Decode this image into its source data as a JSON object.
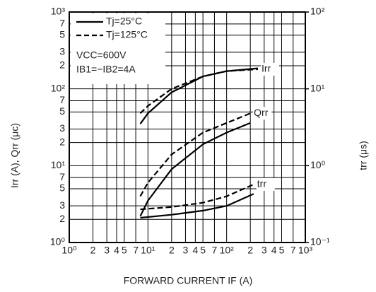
{
  "chart_data": {
    "type": "line",
    "xlabel": "FORWARD CURRENT   IF (A)",
    "ylabel": "Irr (A), Qrr (μc)",
    "y2label": "trr (μs)",
    "xscale": "log",
    "yscale": "log",
    "y2scale": "log",
    "grid": true,
    "xlim": [
      1,
      1000
    ],
    "xticks": [
      {
        "value": 1,
        "label": "10⁰"
      },
      2,
      3,
      4,
      5,
      7,
      {
        "value": 10,
        "label": "10¹"
      },
      {
        "value": 20,
        "label": "2"
      },
      {
        "value": 30,
        "label": "3"
      },
      {
        "value": 40,
        "label": "4"
      },
      {
        "value": 50,
        "label": "5"
      },
      {
        "value": 70,
        "label": "7"
      },
      {
        "value": 100,
        "label": "10²"
      },
      {
        "value": 200,
        "label": "2"
      },
      {
        "value": 300,
        "label": "3"
      },
      {
        "value": 400,
        "label": "4"
      },
      {
        "value": 500,
        "label": "5"
      },
      {
        "value": 700,
        "label": "7"
      },
      {
        "value": 1000,
        "label": "10³"
      }
    ],
    "ylim": [
      1,
      1000
    ],
    "yticks": [
      {
        "value": 1,
        "label": "10⁰"
      },
      2,
      3,
      5,
      7,
      {
        "value": 10,
        "label": "10¹"
      },
      {
        "value": 20,
        "label": "2"
      },
      {
        "value": 30,
        "label": "3"
      },
      {
        "value": 50,
        "label": "5"
      },
      {
        "value": 70,
        "label": "7"
      },
      {
        "value": 100,
        "label": "10²"
      },
      {
        "value": 200,
        "label": "2"
      },
      {
        "value": 300,
        "label": "3"
      },
      {
        "value": 500,
        "label": "5"
      },
      {
        "value": 700,
        "label": "7"
      },
      {
        "value": 1000,
        "label": "10³"
      }
    ],
    "y2lim": [
      0.1,
      100
    ],
    "y2ticks": [
      {
        "value": 0.1,
        "label": "10⁻¹"
      },
      {
        "value": 1,
        "label": "10⁰"
      },
      {
        "value": 10,
        "label": "10¹"
      },
      {
        "value": 100,
        "label": "10²"
      }
    ],
    "legend": [
      {
        "label": "Tj=25°C",
        "style": "solid"
      },
      {
        "label": "Tj=125°C",
        "style": "dashed"
      }
    ],
    "conditions": [
      "VCC=600V",
      "IB1=−IB2=4A"
    ],
    "curve_labels": [
      "Irr",
      "Qrr",
      "trr"
    ],
    "color": "#000000",
    "series": [
      {
        "style": "solid",
        "x": [
          8,
          10,
          20,
          50,
          100,
          250
        ],
        "values": [
          35,
          48,
          90,
          145,
          170,
          185
        ]
      },
      {
        "style": "dashed",
        "x": [
          8,
          10,
          20,
          50,
          100,
          250
        ],
        "values": [
          48,
          60,
          100,
          145,
          170,
          180
        ]
      },
      {
        "style": "solid",
        "x": [
          8,
          10,
          20,
          50,
          100,
          200
        ],
        "values": [
          2.2,
          3.5,
          9,
          19,
          27,
          36
        ]
      },
      {
        "style": "dashed",
        "x": [
          8,
          10,
          20,
          50,
          100,
          200
        ],
        "values": [
          4,
          6,
          14,
          27,
          36,
          48
        ]
      },
      {
        "style": "solid",
        "axis": "y2",
        "x": [
          8,
          20,
          50,
          100,
          220
        ],
        "values": [
          0.21,
          0.23,
          0.26,
          0.3,
          0.43
        ]
      },
      {
        "style": "dashed",
        "axis": "y2",
        "x": [
          8,
          20,
          50,
          100,
          220
        ],
        "values": [
          0.27,
          0.29,
          0.33,
          0.4,
          0.57
        ]
      }
    ]
  }
}
